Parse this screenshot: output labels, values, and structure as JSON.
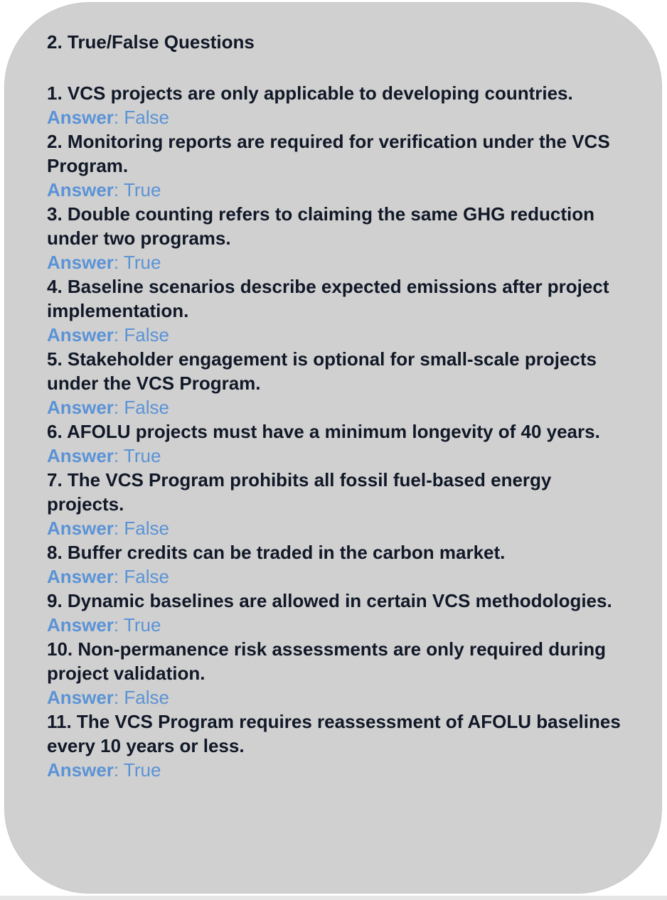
{
  "section": {
    "title": "2. True/False Questions",
    "answer_label": "Answer",
    "answer_separator": ": "
  },
  "questions": [
    {
      "text": "1. VCS projects are only applicable to developing countries.",
      "answer": "False"
    },
    {
      "text": "2. Monitoring reports are required for verification under the VCS Program.",
      "answer": "True"
    },
    {
      "text": "3. Double counting refers to claiming the same GHG reduction under two programs.",
      "answer": "True"
    },
    {
      "text": "4. Baseline scenarios describe expected emissions after project implementation.",
      "answer": "False"
    },
    {
      "text": "5. Stakeholder engagement is optional for small-scale projects under the VCS Program.",
      "answer": "False"
    },
    {
      "text": "6. AFOLU projects must have a minimum longevity of 40 years.",
      "answer": "True"
    },
    {
      "text": "7. The VCS Program prohibits all fossil fuel-based energy projects.",
      "answer": "False"
    },
    {
      "text": "8. Buffer credits can be traded in the carbon market.",
      "answer": "False"
    },
    {
      "text": "9. Dynamic baselines are allowed in certain VCS methodologies.",
      "answer": "True"
    },
    {
      "text": "10. Non-permanence risk assessments are only required during project validation.",
      "answer": "False"
    },
    {
      "text": "11. The VCS Program requires reassessment of AFOLU baselines every 10 years or less.",
      "answer": "True"
    }
  ],
  "colors": {
    "card_background": "#d0d0d0",
    "question_text": "#111827",
    "answer_text": "#5b93d6"
  }
}
